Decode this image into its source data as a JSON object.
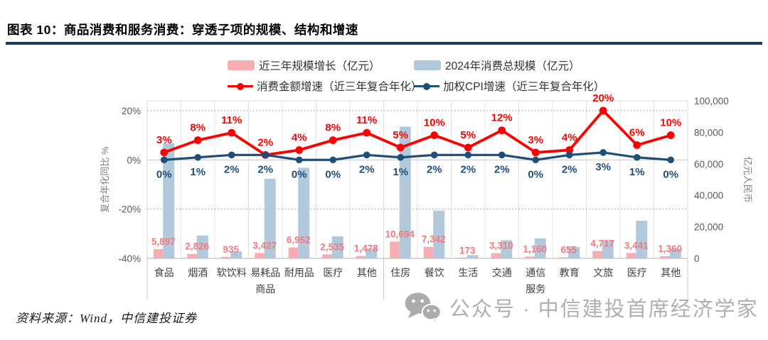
{
  "figure": {
    "title": "图表 10：商品消费和服务消费：穿透子项的规模、结构和增速",
    "source_note": "资料来源：Wind，中信建投证券",
    "watermark_text": "公众号 · 中信建投首席经济学家",
    "watermark_icon": "wechat-icon"
  },
  "colors": {
    "title_rule": "#17375D",
    "pink_bar": "#F5AFB2",
    "blue_bar": "#B2C9DC",
    "red_line": "#FF0000",
    "navy_line": "#1F4E79",
    "bar_value_label": "#F4787E",
    "axis_text": "#595959",
    "axis_title": "#808080",
    "category_text": "#3F3F3F",
    "gridline": "#D9D9D9",
    "watermark_gray": "#AFAFAF"
  },
  "chart_data": {
    "type": "bar",
    "subtype": "combo-bar-line-dual-axis",
    "title": "图表 10：商品消费和服务消费：穿透子项的规模、结构和增速",
    "categories": [
      "食品",
      "烟酒",
      "软饮料",
      "易耗品",
      "耐用品",
      "医疗",
      "其他",
      "住房",
      "餐饮",
      "生活",
      "交通",
      "通信",
      "教育",
      "文旅",
      "医疗",
      "其他"
    ],
    "groups": [
      {
        "label": "商品",
        "start": 0,
        "end": 6
      },
      {
        "label": "服务",
        "start": 7,
        "end": 15
      }
    ],
    "legend": [
      {
        "label": "近三年规模增长（亿元）",
        "marker": "bar",
        "color": "#F5AFB2"
      },
      {
        "label": "2024年消费总规模（亿元）",
        "marker": "bar",
        "color": "#B2C9DC"
      },
      {
        "label": "消费金额增速（近三年复合年化）",
        "marker": "line",
        "color": "#FF0000"
      },
      {
        "label": "加权CPI增速（近三年复合年化）",
        "marker": "line",
        "color": "#1F4E79"
      }
    ],
    "series": [
      {
        "name": "近三年规模增长（亿元）",
        "kind": "bar",
        "axis": "right",
        "color": "#F5AFB2",
        "values": [
          5897,
          2826,
          935,
          3427,
          6952,
          2535,
          1478,
          10694,
          7342,
          173,
          3310,
          1160,
          655,
          4717,
          3441,
          1360
        ],
        "labels": [
          "5,897",
          "2,826",
          "935",
          "3,427",
          "6,952",
          "2,535",
          "1,478",
          "10,694",
          "7,342",
          "173",
          "3,310",
          "1,160",
          "655",
          "4,717",
          "3,441",
          "1,360"
        ],
        "label_color": "#F4787E"
      },
      {
        "name": "2024年消费总规模（亿元）",
        "kind": "bar",
        "axis": "right",
        "color": "#B2C9DC",
        "estimated": true,
        "values": [
          73000,
          14500,
          4400,
          50500,
          57500,
          14000,
          6300,
          83600,
          30300,
          2100,
          11500,
          12700,
          7300,
          11400,
          23900,
          6000
        ]
      },
      {
        "name": "消费金额增速（近三年复合年化）",
        "kind": "line",
        "axis": "left",
        "color": "#FF0000",
        "values": [
          3,
          8,
          11,
          2,
          4,
          8,
          11,
          5,
          10,
          5,
          12,
          3,
          4,
          20,
          6,
          10
        ],
        "labels": [
          "3%",
          "8%",
          "11%",
          "2%",
          "4%",
          "8%",
          "11%",
          "5%",
          "10%",
          "5%",
          "12%",
          "3%",
          "4%",
          "20%",
          "6%",
          "10%"
        ]
      },
      {
        "name": "加权CPI增速（近三年复合年化）",
        "kind": "line",
        "axis": "left",
        "color": "#1F4E79",
        "values": [
          0,
          1,
          2,
          2,
          0,
          0,
          2,
          1,
          2,
          2,
          2,
          0,
          2,
          3,
          1,
          0
        ],
        "labels": [
          "0%",
          "1%",
          "2%",
          "2%",
          "0%",
          "0%",
          "2%",
          "1%",
          "2%",
          "2%",
          "2%",
          "0%",
          "2%",
          "3%",
          "1%",
          "0%"
        ]
      }
    ],
    "left_axis": {
      "title": "复合年化同比 %",
      "min": -40,
      "max": 24,
      "ticks": [
        {
          "label": "20%",
          "value": 20
        },
        {
          "label": "0%",
          "value": 0
        },
        {
          "label": "-20%",
          "value": -20
        },
        {
          "label": "-40%",
          "value": -40
        }
      ]
    },
    "right_axis": {
      "title": "亿元人民币",
      "min": 0,
      "max": 100000,
      "ticks": [
        {
          "label": "100,000",
          "value": 100000
        },
        {
          "label": "80,000",
          "value": 80000
        },
        {
          "label": "60,000",
          "value": 60000
        },
        {
          "label": "40,000",
          "value": 40000
        },
        {
          "label": "20,000",
          "value": 20000
        },
        {
          "label": "0",
          "value": 0
        }
      ]
    },
    "grid": {
      "horizontal": true,
      "vertical": true
    },
    "legend_position": "top-center"
  }
}
